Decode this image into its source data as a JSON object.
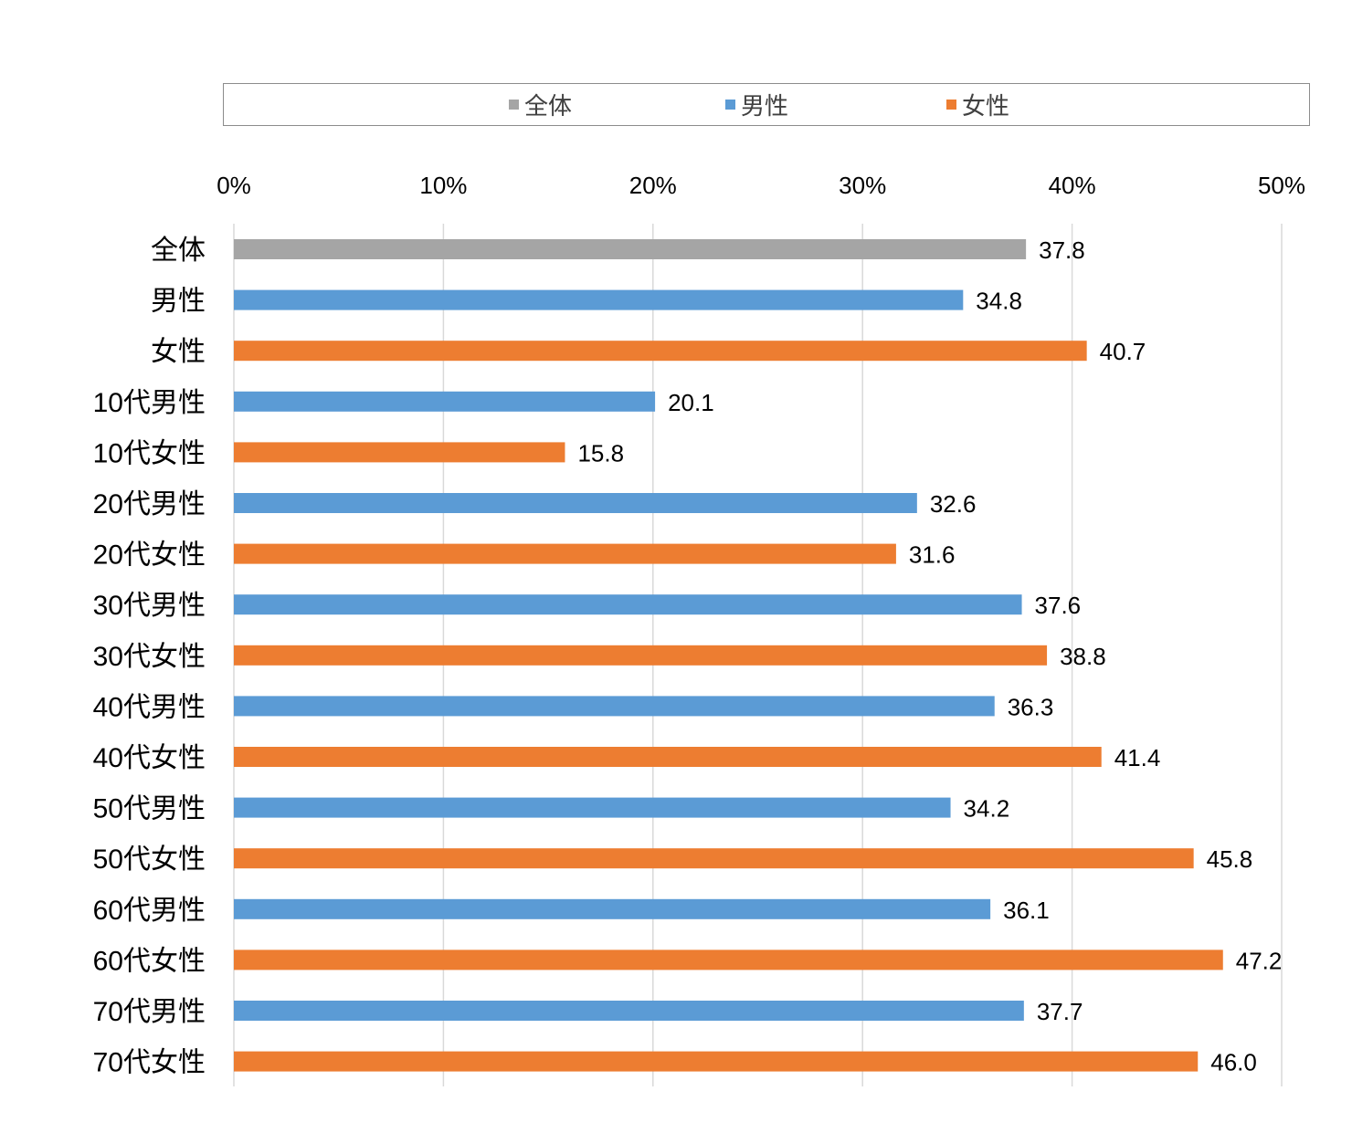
{
  "chart_data": {
    "type": "bar",
    "orientation": "horizontal",
    "title": "",
    "xlabel": "",
    "ylabel": "",
    "xlim": [
      0,
      50
    ],
    "x_ticks": [
      "0%",
      "10%",
      "20%",
      "30%",
      "40%",
      "50%"
    ],
    "x_axis_position": "top",
    "grid": true,
    "legend_position": "top",
    "legend": [
      {
        "label": "全体",
        "color": "#a5a5a5"
      },
      {
        "label": "男性",
        "color": "#5b9bd5"
      },
      {
        "label": "女性",
        "color": "#ed7d31"
      }
    ],
    "categories": [
      "全体",
      "男性",
      "女性",
      "10代男性",
      "10代女性",
      "20代男性",
      "20代女性",
      "30代男性",
      "30代女性",
      "40代男性",
      "40代女性",
      "50代男性",
      "50代女性",
      "60代男性",
      "60代女性",
      "70代男性",
      "70代女性"
    ],
    "values": [
      37.8,
      34.8,
      40.7,
      20.1,
      15.8,
      32.6,
      31.6,
      37.6,
      38.8,
      36.3,
      41.4,
      34.2,
      45.8,
      36.1,
      47.2,
      37.7,
      46.0
    ],
    "value_labels": [
      "37.8",
      "34.8",
      "40.7",
      "20.1",
      "15.8",
      "32.6",
      "31.6",
      "37.6",
      "38.8",
      "36.3",
      "41.4",
      "34.2",
      "45.8",
      "36.1",
      "47.2",
      "37.7",
      "46.0"
    ],
    "groups": [
      "全体",
      "男性",
      "女性",
      "男性",
      "女性",
      "男性",
      "女性",
      "男性",
      "女性",
      "男性",
      "女性",
      "男性",
      "女性",
      "男性",
      "女性",
      "男性",
      "女性"
    ]
  }
}
